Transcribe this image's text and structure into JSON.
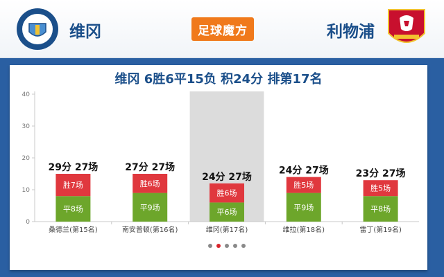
{
  "header": {
    "home_team": "维冈",
    "away_team": "利物浦",
    "home_logo": "wigan-athletic-crest-icon",
    "away_logo": "liverpool-fc-crest-icon",
    "brand": "足球魔方"
  },
  "card": {
    "title": "维冈 6胜6平15负 积24分 排第17名"
  },
  "colors": {
    "win": "#e0383e",
    "draw": "#6da62b",
    "highlight": "#dcdcdc",
    "accent": "#1b4f8a"
  },
  "chart_data": {
    "type": "bar",
    "stacked": true,
    "ylim": [
      0,
      40
    ],
    "yticks": [
      0,
      10,
      20,
      30,
      40
    ],
    "grid": false,
    "highlight_index": 2,
    "categories": [
      "桑德兰(第15名)",
      "南安普顿(第16名)",
      "维冈(第17名)",
      "维拉(第18名)",
      "雷丁(第19名)"
    ],
    "series": [
      {
        "key": "draw",
        "values": [
          8,
          9,
          6,
          9,
          8
        ],
        "labels": [
          "平8场",
          "平9场",
          "平6场",
          "平9场",
          "平8场"
        ]
      },
      {
        "key": "win",
        "values": [
          7,
          6,
          6,
          5,
          5
        ],
        "labels": [
          "胜7场",
          "胜6场",
          "胜6场",
          "胜5场",
          "胜5场"
        ]
      }
    ],
    "points": [
      29,
      27,
      24,
      24,
      23
    ],
    "top_labels": [
      "29分 27场",
      "27分 27场",
      "24分 27场",
      "24分 27场",
      "23分 27场"
    ]
  },
  "pager": {
    "count": 5,
    "active": 1
  }
}
